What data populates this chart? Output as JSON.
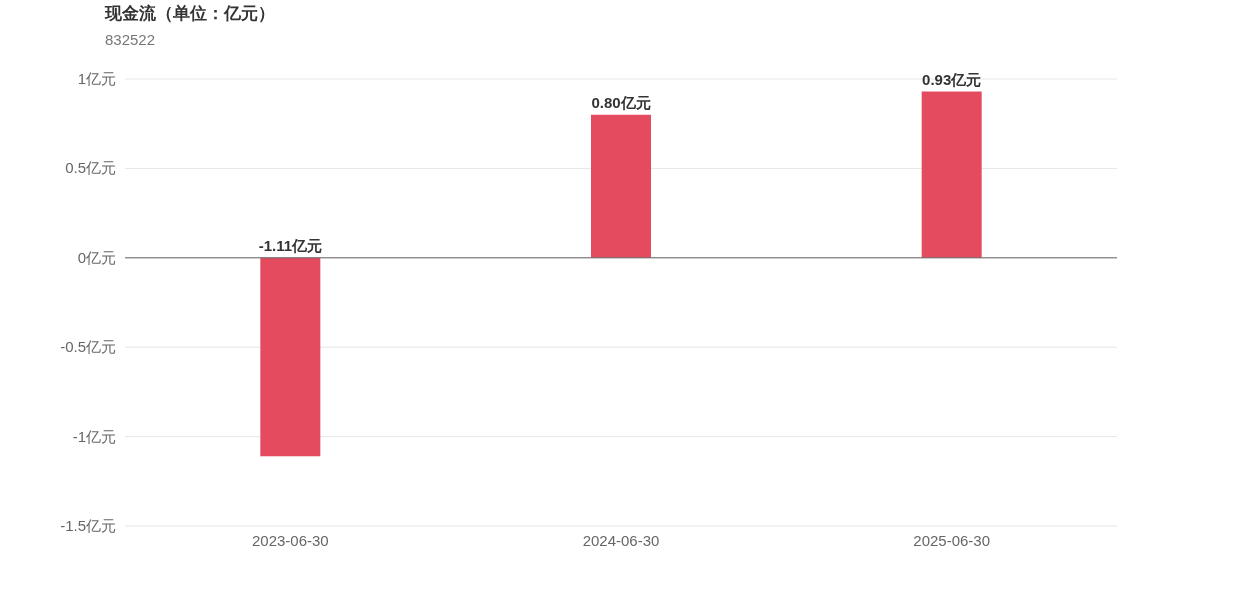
{
  "chart_data": {
    "type": "bar",
    "title": "现金流（单位：亿元）",
    "subtitle": "832522",
    "categories": [
      "2023-06-30",
      "2024-06-30",
      "2025-06-30"
    ],
    "values": [
      -1.11,
      0.8,
      0.93
    ],
    "value_labels": [
      "-1.11亿元",
      "0.80亿元",
      "0.93亿元"
    ],
    "color": "#e54b5e",
    "ylim": [
      -1.5,
      1
    ],
    "yticks": [
      {
        "value": -1.5,
        "label": "-1.5亿元"
      },
      {
        "value": -1,
        "label": "-1亿元"
      },
      {
        "value": -0.5,
        "label": "-0.5亿元"
      },
      {
        "value": 0,
        "label": "0亿元"
      },
      {
        "value": 0.5,
        "label": "0.5亿元"
      },
      {
        "value": 1,
        "label": "1亿元"
      }
    ],
    "grid": "y"
  }
}
